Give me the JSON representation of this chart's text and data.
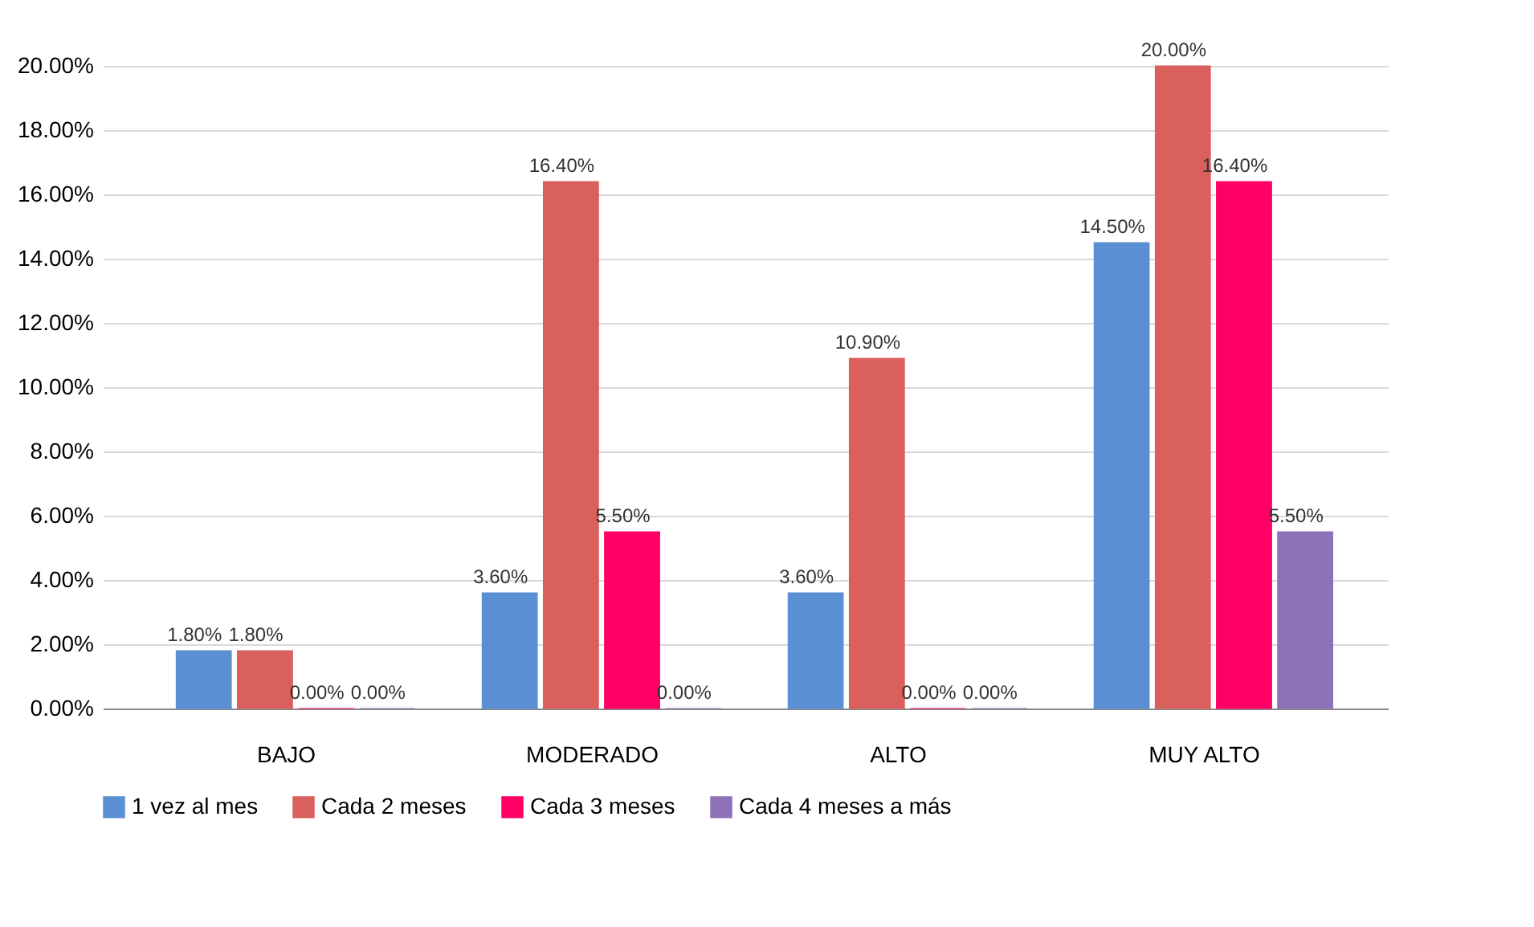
{
  "chart_data": {
    "type": "bar",
    "categories": [
      "BAJO",
      "MODERADO",
      "ALTO",
      "MUY ALTO"
    ],
    "series": [
      {
        "name": "1 vez al mes",
        "color": "#5b8fd4",
        "values": [
          1.8,
          3.6,
          3.6,
          14.5
        ],
        "value_labels": [
          "1.80%",
          "3.60%",
          "3.60%",
          "14.50%"
        ]
      },
      {
        "name": "Cada 2 meses",
        "color": "#d9605c",
        "values": [
          1.8,
          16.4,
          10.9,
          20.0
        ],
        "value_labels": [
          "1.80%",
          "16.40%",
          "10.90%",
          "20.00%"
        ]
      },
      {
        "name": "Cada 3 meses",
        "color": "#ff0066",
        "values": [
          0,
          5.5,
          0,
          16.4
        ],
        "value_labels": [
          "0.00%",
          "5.50%",
          "0.00%",
          "16.40%"
        ]
      },
      {
        "name": "Cada 4 meses a más",
        "color": "#8e72b8",
        "values": [
          0,
          0,
          0,
          5.5
        ],
        "value_labels": [
          "0.00%",
          "0.00%",
          "0.00%",
          "5.50%"
        ]
      }
    ],
    "ylim": [
      0,
      20
    ],
    "yticks": [
      {
        "value": 0,
        "label": "0.00%"
      },
      {
        "value": 2,
        "label": "2.00%"
      },
      {
        "value": 4,
        "label": "4.00%"
      },
      {
        "value": 6,
        "label": "6.00%"
      },
      {
        "value": 8,
        "label": "8.00%"
      },
      {
        "value": 10,
        "label": "10.00%"
      },
      {
        "value": 12,
        "label": "12.00%"
      },
      {
        "value": 14,
        "label": "14.00%"
      },
      {
        "value": 16,
        "label": "16.00%"
      },
      {
        "value": 18,
        "label": "18.00%"
      },
      {
        "value": 20,
        "label": "20.00%"
      }
    ],
    "grid": "y",
    "legend": "bottom"
  }
}
